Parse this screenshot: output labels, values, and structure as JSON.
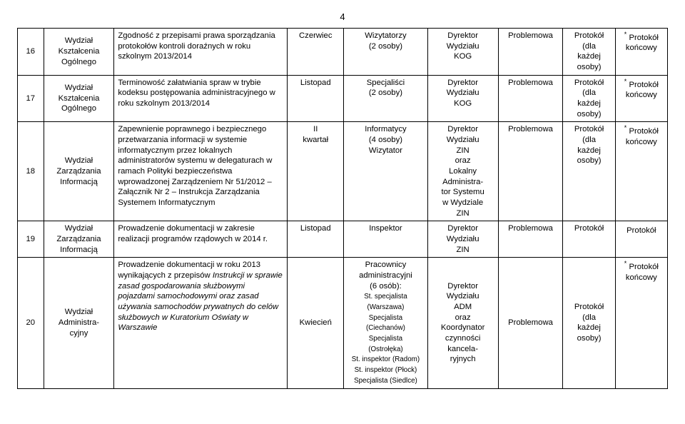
{
  "page_number": "4",
  "rows": [
    {
      "num": "16",
      "dept": "Wydział\nKształcenia\nOgólnego",
      "subject": "Zgodność z przepisami prawa sporządzania protokołów kontroli doraźnych w roku szkolnym 2013/2014",
      "period": "Czerwiec",
      "who": "Wizytatorzy\n(2 osoby)",
      "director": "Dyrektor\nWydziału\nKOG",
      "type": "Problemowa",
      "proto": "Protokół\n(dla\nkażdej\nosoby)",
      "end_sup": "*",
      "end": " Protokół\nkońcowy"
    },
    {
      "num": "17",
      "dept": "Wydział\nKształcenia\nOgólnego",
      "subject": "Terminowość załatwiania spraw w trybie kodeksu postępowania administracyjnego w roku szkolnym 2013/2014",
      "period": "Listopad",
      "who": "Specjaliści\n(2 osoby)",
      "director": "Dyrektor\nWydziału\nKOG",
      "type": "Problemowa",
      "proto": "Protokół\n(dla\nkażdej\nosoby)",
      "end_sup": "*",
      "end": " Protokół\nkońcowy"
    },
    {
      "num": "18",
      "dept": "Wydział\nZarządzania\nInformacją",
      "subject": "Zapewnienie poprawnego i bezpiecznego przetwarzania informacji w systemie informatycznym przez lokalnych administratorów systemu w delegaturach w ramach Polityki bezpieczeństwa wprowadzonej Zarządzeniem Nr 51/2012 – Załącznik Nr 2 – Instrukcja Zarządzania Systemem Informatycznym",
      "period": "II\nkwartał",
      "who": "Informatycy\n(4 osoby)\nWizytator",
      "director": "Dyrektor\nWydziału\nZIN\noraz\nLokalny\nAdministra-\ntor Systemu\nw Wydziale\nZIN",
      "type": "Problemowa",
      "proto": "Protokół\n(dla\nkażdej\nosoby)",
      "end_sup": "*",
      "end": " Protokół\nkońcowy"
    },
    {
      "num": "19",
      "dept": "Wydział\nZarządzania\nInformacją",
      "subject": "Prowadzenie dokumentacji w zakresie realizacji programów rządowych w 2014 r.",
      "period": "Listopad",
      "who": "Inspektor",
      "director": "Dyrektor\nWydziału\nZIN",
      "type": "Problemowa",
      "proto": "Protokół",
      "end_sup": "",
      "end": "Protokół"
    },
    {
      "num": "20",
      "dept": "Wydział\nAdministra-\ncyjny",
      "subject_html": "Prowadzenie dokumentacji w roku 2013 wynikających z przepisów <i>Instrukcji w sprawie zasad gospodarowania służbowymi pojazdami samochodowymi oraz zasad używania samochodów prywatnych do celów służbowych w Kuratorium Oświaty w Warszawie</i>",
      "period": "Kwiecień",
      "who_html": "Pracownicy\nadministracyjni\n(6 osób):\n<span class=\"small\">St. specjalista\n(Warszawa)\nSpecjalista\n(Ciechanów)\nSpecjalista\n(Ostrołęka)\nSt. inspektor (Radom)\nSt. inspektor (Płock)\nSpecjalista (Siedlce)</span>",
      "director": "Dyrektor\nWydziału\nADM\noraz\nKoordynator\nczynności\nkancela-\nryjnych",
      "type": "Problemowa",
      "proto": "Protokół\n(dla\nkażdej\nosoby)",
      "end_sup": "*",
      "end": " Protokół\nkońcowy"
    }
  ]
}
